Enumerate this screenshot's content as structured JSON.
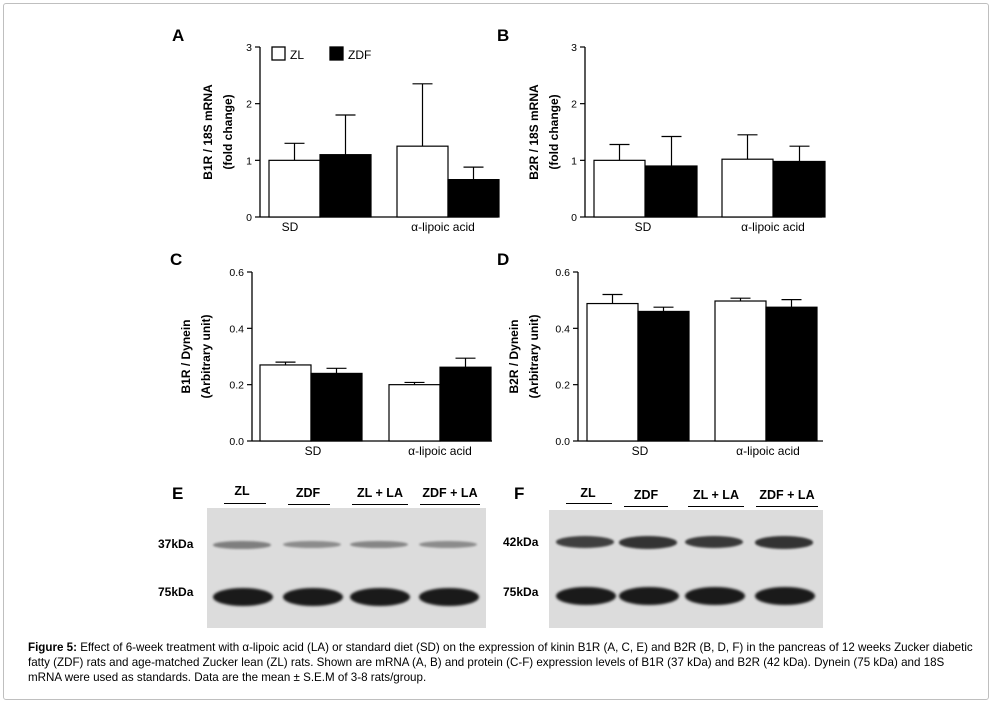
{
  "panels": {
    "A": "A",
    "B": "B",
    "C": "C",
    "D": "D",
    "E": "E",
    "F": "F"
  },
  "legend": {
    "zl": "ZL",
    "zdf": "ZDF"
  },
  "colors": {
    "zl": "#ffffff",
    "zdf": "#000000",
    "axis": "#000000",
    "blot_bg": "#dcdcdc",
    "band": "#1a1a1a"
  },
  "chart_data": [
    {
      "panel": "A",
      "type": "bar",
      "categories": [
        "SD",
        "α-lipoic acid"
      ],
      "ylabel_line1": "B1R / 18S mRNA",
      "ylabel_line2": "(fold change)",
      "ylim": [
        0,
        3
      ],
      "yticks": [
        "0",
        "1",
        "2",
        "3"
      ],
      "legend_position": "top-left",
      "series": [
        {
          "name": "ZL",
          "values": [
            1.0,
            1.25
          ],
          "err": [
            0.3,
            1.1
          ]
        },
        {
          "name": "ZDF",
          "values": [
            1.1,
            0.66
          ],
          "err": [
            0.7,
            0.22
          ]
        }
      ]
    },
    {
      "panel": "B",
      "type": "bar",
      "categories": [
        "SD",
        "α-lipoic acid"
      ],
      "ylabel_line1": "B2R / 18S mRNA",
      "ylabel_line2": "(fold change)",
      "ylim": [
        0,
        3
      ],
      "yticks": [
        "0",
        "1",
        "2",
        "3"
      ],
      "series": [
        {
          "name": "ZL",
          "values": [
            1.0,
            1.02
          ],
          "err": [
            0.28,
            0.43
          ]
        },
        {
          "name": "ZDF",
          "values": [
            0.9,
            0.98
          ],
          "err": [
            0.52,
            0.27
          ]
        }
      ]
    },
    {
      "panel": "C",
      "type": "bar",
      "categories": [
        "SD",
        "α-lipoic acid"
      ],
      "ylabel_line1": "B1R / Dynein",
      "ylabel_line2": "(Arbitrary unit)",
      "ylim": [
        0,
        0.6
      ],
      "yticks": [
        "0.0",
        "0.2",
        "0.4",
        "0.6"
      ],
      "series": [
        {
          "name": "ZL",
          "values": [
            0.27,
            0.2
          ],
          "err": [
            0.01,
            0.008
          ]
        },
        {
          "name": "ZDF",
          "values": [
            0.24,
            0.262
          ],
          "err": [
            0.018,
            0.032
          ]
        }
      ]
    },
    {
      "panel": "D",
      "type": "bar",
      "categories": [
        "SD",
        "α-lipoic acid"
      ],
      "ylabel_line1": "B2R / Dynein",
      "ylabel_line2": "(Arbitrary unit)",
      "ylim": [
        0,
        0.6
      ],
      "yticks": [
        "0.0",
        "0.2",
        "0.4",
        "0.6"
      ],
      "series": [
        {
          "name": "ZL",
          "values": [
            0.488,
            0.497
          ],
          "err": [
            0.032,
            0.01
          ]
        },
        {
          "name": "ZDF",
          "values": [
            0.46,
            0.475
          ],
          "err": [
            0.015,
            0.027
          ]
        }
      ]
    }
  ],
  "blots": {
    "E": {
      "lanes": [
        "ZL",
        "ZDF",
        "ZL + LA",
        "ZDF + LA"
      ],
      "band_labels": [
        "37kDa",
        "75kDa"
      ],
      "top_intensity": [
        0.35,
        0.25,
        0.3,
        0.25
      ],
      "bottom_intensity": [
        1,
        1,
        1,
        1
      ]
    },
    "F": {
      "lanes": [
        "ZL",
        "ZDF",
        "ZL + LA",
        "ZDF + LA"
      ],
      "band_labels": [
        "42kDa",
        "75kDa"
      ],
      "top_intensity": [
        0.85,
        0.95,
        0.9,
        0.95
      ],
      "bottom_intensity": [
        1,
        1,
        1,
        1
      ]
    }
  },
  "caption": {
    "lead": "Figure 5:",
    "text": " Effect of 6-week treatment with α-lipoic acid (LA) or standard diet (SD) on the expression of kinin B1R (A, C, E) and B2R (B, D, F) in the pancreas of 12 weeks Zucker diabetic fatty (ZDF) rats and age-matched Zucker lean (ZL) rats. Shown are mRNA (A, B) and protein (C-F) expression levels of B1R (37 kDa) and B2R (42 kDa). Dynein (75 kDa) and 18S mRNA were used as standards. Data are the mean ± S.E.M of 3-8 rats/group."
  }
}
